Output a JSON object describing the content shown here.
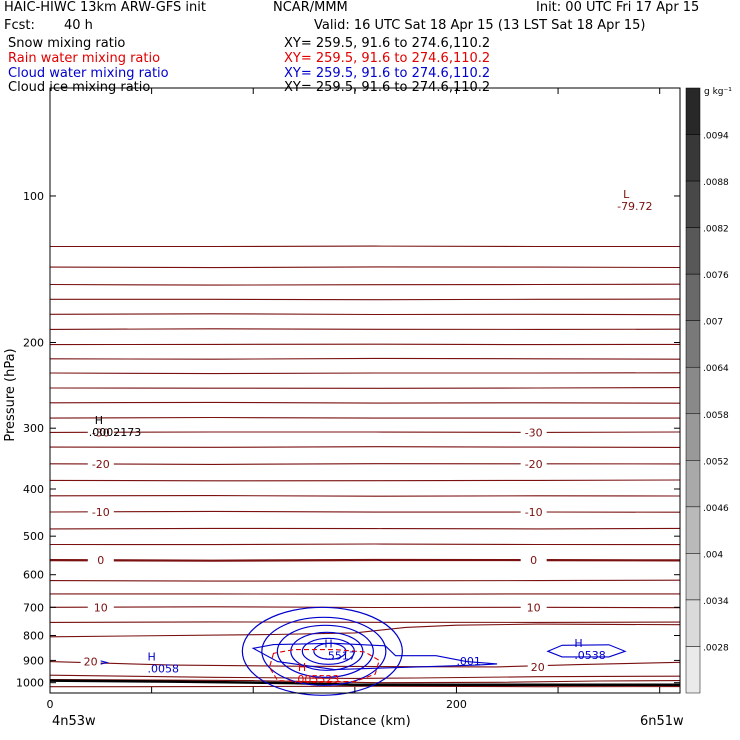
{
  "header": {
    "model": "HAIC-HIWC 13km ARW-GFS init",
    "org": "NCAR/MMM",
    "init": "Init: 00 UTC Fri 17 Apr 15",
    "fcst_label": "Fcst:",
    "fcst_value": "40 h",
    "valid": "Valid: 16 UTC Sat 18 Apr 15 (13 LST Sat 18 Apr 15)"
  },
  "fields": [
    {
      "label": "Snow mixing ratio",
      "xy": "XY= 259.5, 91.6 to 274.6,110.2",
      "color": "#000000"
    },
    {
      "label": "Rain water mixing ratio",
      "xy": "XY= 259.5, 91.6 to 274.6,110.2",
      "color": "#e00000"
    },
    {
      "label": "Cloud water mixing ratio",
      "xy": "XY= 259.5, 91.6 to 274.6,110.2",
      "color": "#0000cc"
    },
    {
      "label": "Cloud ice mixing ratio",
      "xy": "XY= 259.5, 91.6 to 274.6,110.2",
      "color": "#000000"
    }
  ],
  "chart_data": {
    "type": "cross-section",
    "xlabel": "Distance (km)",
    "ylabel": "Pressure (hPa)",
    "xlim": [
      0,
      310
    ],
    "ylim": [
      1050,
      60
    ],
    "x_ticks": [
      0,
      50,
      100,
      150,
      200,
      250,
      300
    ],
    "x_tick_labels": [
      "0",
      "",
      "",
      "",
      "200",
      "",
      ""
    ],
    "x_end_labels": {
      "left": "4n53w",
      "right": "6n51w"
    },
    "y_ticks": [
      100,
      200,
      300,
      400,
      500,
      600,
      700,
      800,
      900,
      1000
    ],
    "y_log_scale": true,
    "grid": false,
    "temperature_isotherms": {
      "color": "#7a1010",
      "unit": "°C",
      "lines": [
        {
          "p": 127,
          "label": ""
        },
        {
          "p": 140,
          "label": ""
        },
        {
          "p": 152,
          "label": ""
        },
        {
          "p": 163,
          "label": ""
        },
        {
          "p": 175,
          "label": ""
        },
        {
          "p": 188,
          "label": ""
        },
        {
          "p": 202,
          "label": ""
        },
        {
          "p": 216,
          "label": ""
        },
        {
          "p": 231,
          "label": ""
        },
        {
          "p": 248,
          "label": ""
        },
        {
          "p": 266,
          "label": ""
        },
        {
          "p": 286,
          "label": ""
        },
        {
          "p": 306,
          "label": "-30"
        },
        {
          "p": 328,
          "label": ""
        },
        {
          "p": 355,
          "label": "-20"
        },
        {
          "p": 384,
          "label": ""
        },
        {
          "p": 413,
          "label": ""
        },
        {
          "p": 446,
          "label": "-10"
        },
        {
          "p": 483,
          "label": ""
        },
        {
          "p": 520,
          "label": ""
        },
        {
          "p": 560,
          "label": "0",
          "bold": true
        },
        {
          "p": 617,
          "label": ""
        },
        {
          "p": 657,
          "label": ""
        },
        {
          "p": 700,
          "label": "10"
        },
        {
          "p": 752,
          "label": ""
        },
        {
          "p": 1019,
          "label": ""
        }
      ],
      "perturbed_lines": [
        {
          "label": "",
          "points": [
            [
              0,
              805
            ],
            [
              110,
              796
            ],
            [
              150,
              790
            ],
            [
              175,
              770
            ],
            [
              200,
              762
            ],
            [
              240,
              758
            ],
            [
              310,
              760
            ]
          ]
        },
        {
          "label": "20",
          "points": [
            [
              0,
              905
            ],
            [
              60,
              920
            ],
            [
              120,
              925
            ],
            [
              180,
              927
            ],
            [
              220,
              928
            ],
            [
              260,
              918
            ],
            [
              310,
              908
            ]
          ]
        },
        {
          "label": "",
          "points": [
            [
              0,
              965
            ],
            [
              80,
              975
            ],
            [
              150,
              980
            ],
            [
              180,
              978
            ],
            [
              240,
              972
            ],
            [
              310,
              970
            ]
          ]
        },
        {
          "label": "",
          "points": [
            [
              0,
              985
            ],
            [
              100,
              990
            ],
            [
              160,
              1000
            ],
            [
              220,
              998
            ],
            [
              270,
              992
            ],
            [
              310,
              990
            ]
          ]
        }
      ]
    },
    "surface": {
      "color": "#000000",
      "points": [
        [
          0,
          990
        ],
        [
          60,
          995
        ],
        [
          120,
          1002
        ],
        [
          150,
          1010
        ],
        [
          200,
          1010
        ],
        [
          260,
          1010
        ],
        [
          310,
          1010
        ]
      ]
    },
    "cloud_water_contours": {
      "color": "#0000cc",
      "centers": [
        {
          "x": 135,
          "p": 862,
          "label": "H",
          "value": ".5517"
        },
        {
          "x": 258,
          "p": 860,
          "label": "H",
          "value": ".0538"
        },
        {
          "x": 48,
          "p": 918,
          "label": "H",
          "value": ".0058"
        },
        {
          "x": 200,
          "p": 885,
          "label": "",
          "value": ".001"
        }
      ]
    },
    "rain_water_contours": {
      "color": "#e00000",
      "style": "dashed",
      "centers": [
        {
          "x": 122,
          "p": 965,
          "label": "H",
          "value": ".005523"
        }
      ]
    },
    "ice_annotations": [
      {
        "x": 22,
        "p": 300,
        "label": "H",
        "value": ".0002173"
      },
      {
        "x": 282,
        "p": 103,
        "label": "L",
        "value": "-79.72",
        "color": "#7a1010"
      }
    ]
  },
  "colorbar": {
    "unit": "g kg⁻¹",
    "labels": [
      ".0094",
      ".0088",
      ".0082",
      ".0076",
      ".007",
      ".0064",
      ".0058",
      ".0052",
      ".0046",
      ".004",
      ".0034",
      ".0028"
    ]
  }
}
